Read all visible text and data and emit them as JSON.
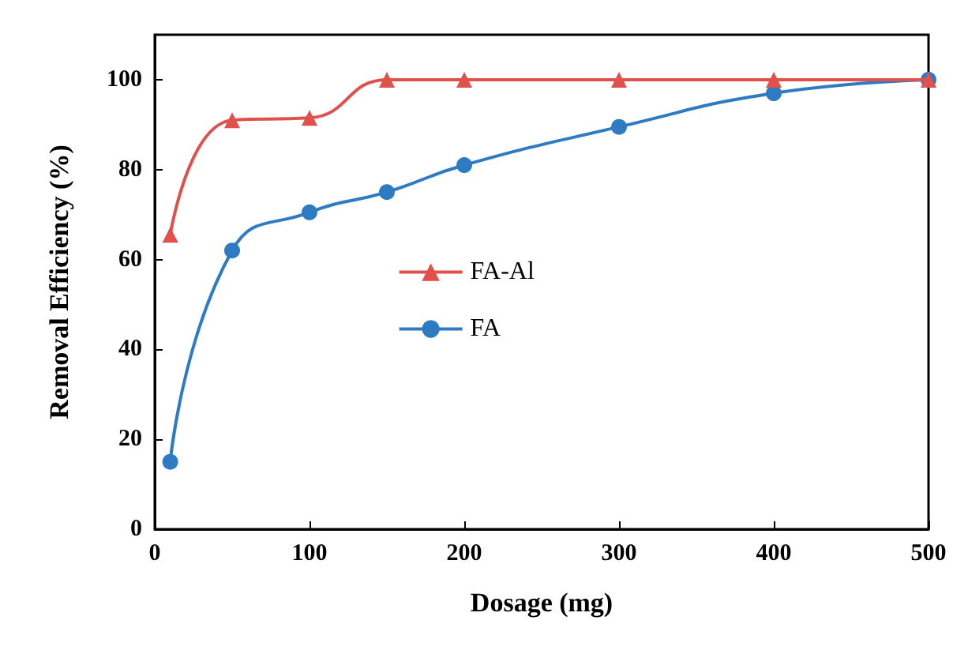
{
  "chart_data": {
    "type": "line",
    "xlabel": "Dosage (mg)",
    "ylabel": "Removal Efficiency (%)",
    "x": [
      10,
      50,
      100,
      150,
      200,
      300,
      400,
      500
    ],
    "series": [
      {
        "name": "FA-Al",
        "color": "#e0504c",
        "marker": "triangle",
        "values": [
          65.5,
          91,
          91.5,
          100,
          100,
          100,
          100,
          100
        ]
      },
      {
        "name": "FA",
        "color": "#2e7bc4",
        "marker": "circle",
        "values": [
          15,
          62,
          70.5,
          75,
          81,
          89.5,
          97,
          100
        ]
      }
    ],
    "xlim": [
      0,
      500
    ],
    "xticks": [
      0,
      100,
      200,
      300,
      400,
      500
    ],
    "ylim": [
      0,
      110
    ],
    "yticks": [
      0,
      20,
      40,
      60,
      80,
      100
    ],
    "grid": false,
    "legend": "center",
    "line_style": "solid"
  }
}
